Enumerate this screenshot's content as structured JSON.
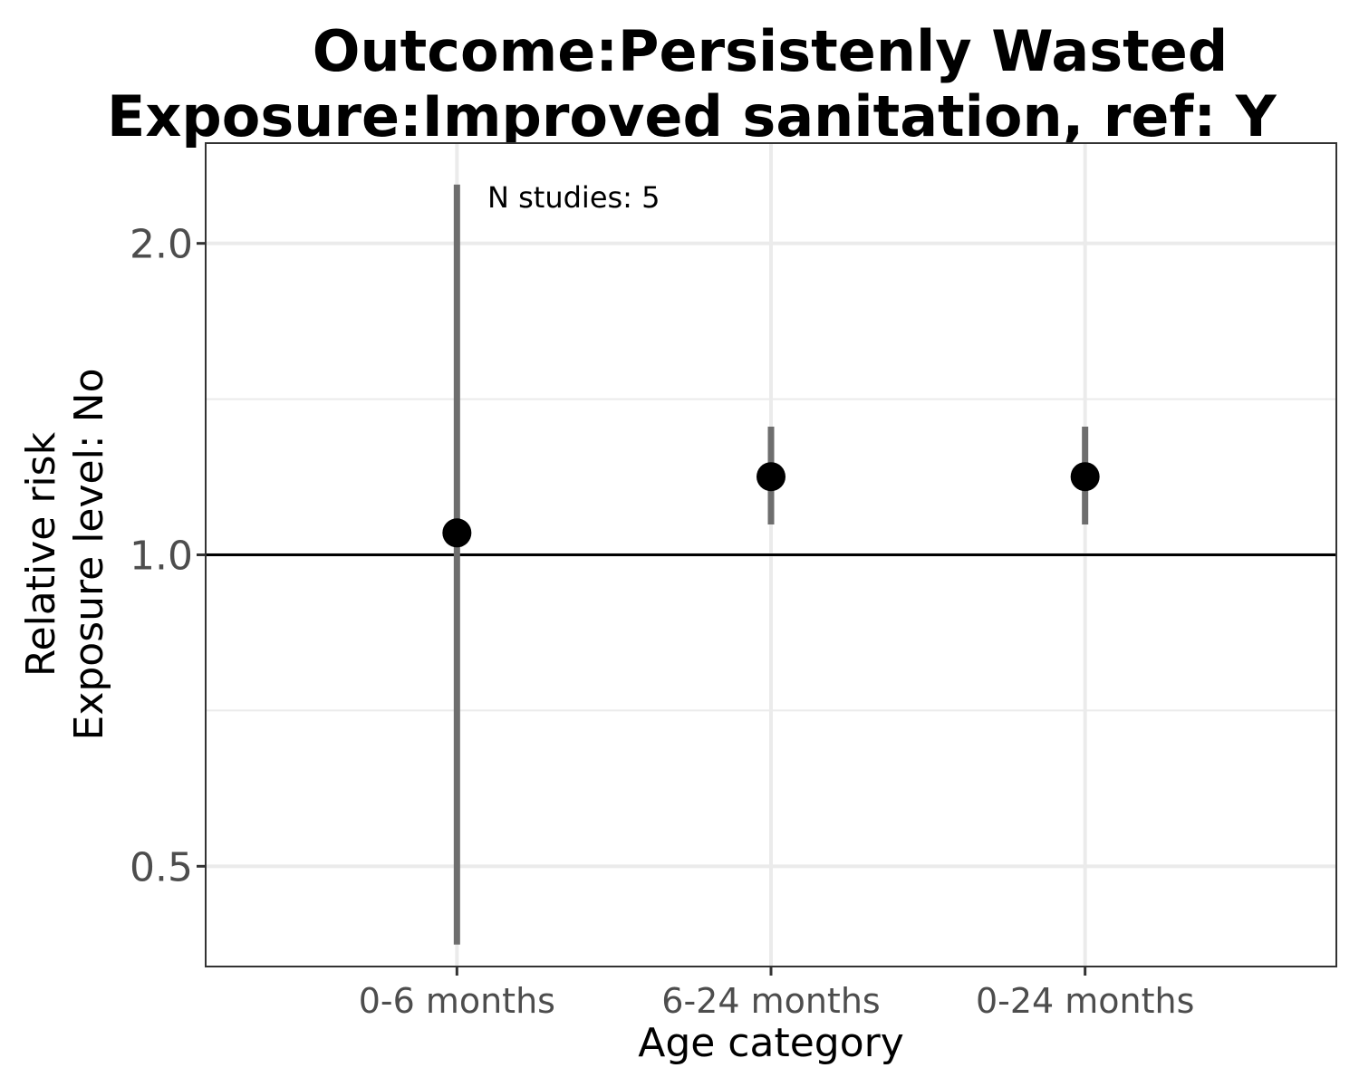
{
  "chart_data": {
    "type": "scatter",
    "title_lines": [
      "Outcome:Persistenly Wasted",
      "Exposure:Improved sanitation, ref: Y"
    ],
    "xlabel": "Age category",
    "ylabel_lines": [
      "Relative risk",
      "Exposure level: No"
    ],
    "categories": [
      "0-6 months",
      "6-24 months",
      "0-24 months"
    ],
    "points": [
      {
        "category": "0-6 months",
        "estimate": 1.05,
        "ci_lower": 0.42,
        "ci_upper": 2.28
      },
      {
        "category": "6-24 months",
        "estimate": 1.19,
        "ci_lower": 1.07,
        "ci_upper": 1.33
      },
      {
        "category": "0-24 months",
        "estimate": 1.19,
        "ci_lower": 1.07,
        "ci_upper": 1.33
      }
    ],
    "y_scale": "log",
    "ylim": [
      0.4,
      2.5
    ],
    "y_ticks": [
      0.5,
      1.0,
      2.0
    ],
    "y_tick_labels": [
      "0.5",
      "1.0",
      "2.0"
    ],
    "reference_line": 1.0,
    "annotation": "N studies: 5",
    "grid": true,
    "point_color": "#000000",
    "ci_color": "#6e6e6e"
  }
}
